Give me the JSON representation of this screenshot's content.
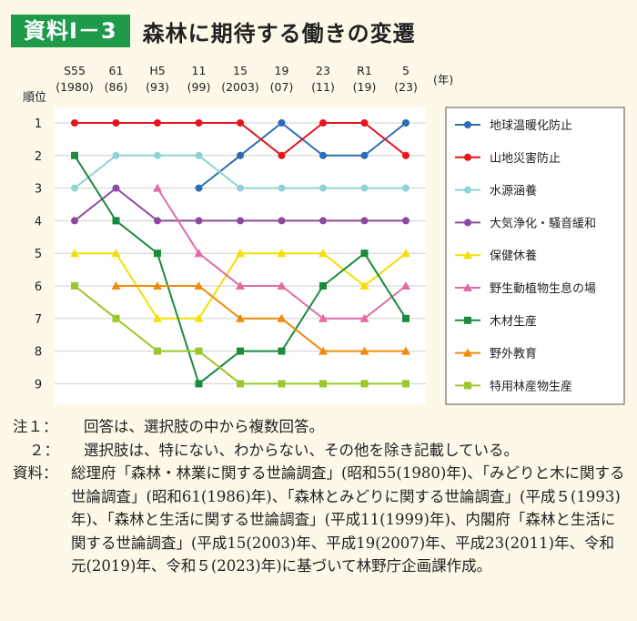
{
  "header": {
    "badge": "資料Ⅰ－3",
    "title": "森林に期待する働きの変遷"
  },
  "colors": {
    "badge_bg": "#1e9a4a",
    "page_bg": "#fdf8e8",
    "plot_bg": "#ffffff"
  },
  "chart_data": {
    "type": "line",
    "ylabel": "順位",
    "x_unit": "(年)",
    "categories": [
      {
        "era": "S55",
        "year": "(1980)"
      },
      {
        "era": "61",
        "year": "(86)"
      },
      {
        "era": "H5",
        "year": "(93)"
      },
      {
        "era": "11",
        "year": "(99)"
      },
      {
        "era": "15",
        "year": "(2003)"
      },
      {
        "era": "19",
        "year": "(07)"
      },
      {
        "era": "23",
        "year": "(11)"
      },
      {
        "era": "R1",
        "year": "(19)"
      },
      {
        "era": "5",
        "year": "(23)"
      }
    ],
    "y_ticks": [
      "1",
      "2",
      "3",
      "4",
      "5",
      "6",
      "7",
      "8",
      "9"
    ],
    "ylim": [
      1,
      9
    ],
    "y_inverted": true,
    "grid": "horizontal",
    "legend_position": "right",
    "series": [
      {
        "name": "地球温暖化防止",
        "color": "#2a6db5",
        "values": [
          null,
          null,
          null,
          3,
          2,
          1,
          2,
          2,
          1
        ]
      },
      {
        "name": "山地災害防止",
        "color": "#e8141c",
        "values": [
          1,
          1,
          1,
          1,
          1,
          2,
          1,
          1,
          2
        ]
      },
      {
        "name": "水源涵養",
        "color": "#8fd3d6",
        "values": [
          3,
          2,
          2,
          2,
          3,
          3,
          3,
          3,
          3
        ]
      },
      {
        "name": "大気浄化・騒音緩和",
        "color": "#8b4a9e",
        "values": [
          4,
          3,
          4,
          4,
          4,
          4,
          4,
          4,
          4
        ]
      },
      {
        "name": "保健休養",
        "color": "#f2e000",
        "values": [
          5,
          5,
          7,
          7,
          5,
          5,
          5,
          6,
          5
        ]
      },
      {
        "name": "野生動植物生息の場",
        "color": "#e46aa6",
        "values": [
          null,
          null,
          3,
          5,
          6,
          6,
          7,
          7,
          6
        ]
      },
      {
        "name": "木材生産",
        "color": "#1a8a3e",
        "values": [
          2,
          4,
          5,
          9,
          8,
          8,
          6,
          5,
          7
        ]
      },
      {
        "name": "野外教育",
        "color": "#f08a0c",
        "values": [
          null,
          6,
          6,
          6,
          7,
          7,
          8,
          8,
          8
        ]
      },
      {
        "name": "特用林産物生産",
        "color": "#9cc62a",
        "values": [
          6,
          7,
          8,
          8,
          9,
          9,
          9,
          9,
          9
        ]
      }
    ]
  },
  "notes": [
    {
      "label": "注１：",
      "text": "回答は、選択肢の中から複数回答。"
    },
    {
      "label": "２：",
      "text": "選択肢は、特にない、わからない、その他を除き記載している。"
    },
    {
      "label": "資料：",
      "text": "総理府「森林・林業に関する世論調査」(昭和55(1980)年)、「みどりと木に関する世論調査」(昭和61(1986)年)、「森林とみどりに関する世論調査」(平成５(1993)年)、「森林と生活に関する世論調査」(平成11(1999)年)、内閣府「森林と生活に関する世論調査」(平成15(2003)年、平成19(2007)年、平成23(2011)年、令和元(2019)年、令和５(2023)年)に基づいて林野庁企画課作成。"
    }
  ]
}
